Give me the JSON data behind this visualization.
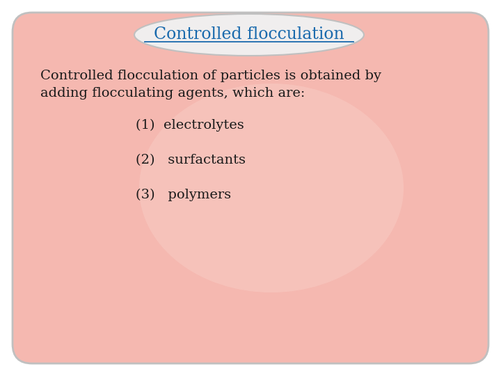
{
  "title": "Controlled flocculation",
  "title_color": "#1a6aad",
  "title_fontsize": 17,
  "bg_color": "#f5b8b0",
  "outer_bg": "#ffffff",
  "body_text_line1": "Controlled flocculation of particles is obtained by",
  "body_text_line2": "adding flocculating agents, which are:",
  "body_fontsize": 14,
  "body_color": "#1a1a1a",
  "items": [
    "(1)  electrolytes",
    "(2)   surfactants",
    "(3)   polymers"
  ],
  "item_fontsize": 14,
  "item_color": "#1a1a1a",
  "ellipse_facecolor": "#f0eeee",
  "ellipse_edgecolor": "#c0c0c0",
  "underline_color": "#1a6aad",
  "card_edge_color": "#c0c0c0",
  "highlight_color": "#f9d0c8"
}
